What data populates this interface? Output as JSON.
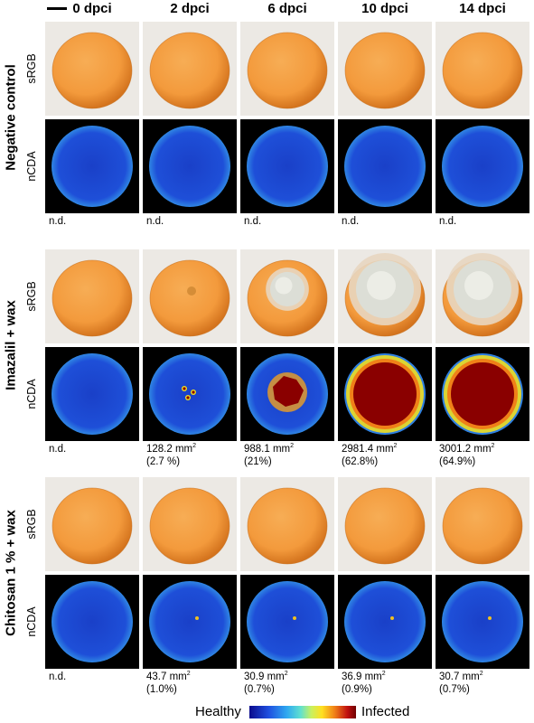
{
  "columns": [
    "0 dpci",
    "2 dpci",
    "6 dpci",
    "10 dpci",
    "14 dpci"
  ],
  "row_labels": {
    "srgb": "sRGB",
    "ncda": "nCDA"
  },
  "groups": [
    {
      "label": "Negative control",
      "lesion": [
        0,
        0,
        0,
        0,
        0
      ],
      "spots": [
        0,
        0,
        0,
        0,
        0
      ],
      "measurements": [
        {
          "area": "n.d.",
          "percent": ""
        },
        {
          "area": "n.d.",
          "percent": ""
        },
        {
          "area": "n.d.",
          "percent": ""
        },
        {
          "area": "n.d.",
          "percent": ""
        },
        {
          "area": "n.d.",
          "percent": ""
        }
      ]
    },
    {
      "label": "Imazalil + wax",
      "lesion": [
        0,
        0.027,
        0.21,
        0.628,
        0.649
      ],
      "spots": [
        0,
        0,
        0,
        0,
        0
      ],
      "measurements": [
        {
          "area": "n.d.",
          "percent": ""
        },
        {
          "area": "128.2 mm",
          "percent": "(2.7 %)"
        },
        {
          "area": "988.1 mm",
          "percent": "(21%)"
        },
        {
          "area": "2981.4 mm",
          "percent": "(62.8%)"
        },
        {
          "area": "3001.2 mm",
          "percent": "(64.9%)"
        }
      ]
    },
    {
      "label": "Chitosan 1 % + wax",
      "lesion": [
        0,
        0.01,
        0.007,
        0.009,
        0.007
      ],
      "spots": [
        0,
        1,
        1,
        1,
        1
      ],
      "measurements": [
        {
          "area": "n.d.",
          "percent": ""
        },
        {
          "area": "43.7 mm",
          "percent": "(1.0%)"
        },
        {
          "area": "30.9 mm",
          "percent": "(0.7%)"
        },
        {
          "area": "36.9 mm",
          "percent": "(0.9%)"
        },
        {
          "area": "30.7 mm",
          "percent": "(0.7%)"
        }
      ]
    }
  ],
  "legend": {
    "left": "Healthy",
    "right": "Infected"
  },
  "colors": {
    "peel": "#f39a3c",
    "peel_dark": "#d4741e",
    "background": "#ece9e4",
    "healthy": "#1e4fd8",
    "infected": "#8a0000"
  }
}
